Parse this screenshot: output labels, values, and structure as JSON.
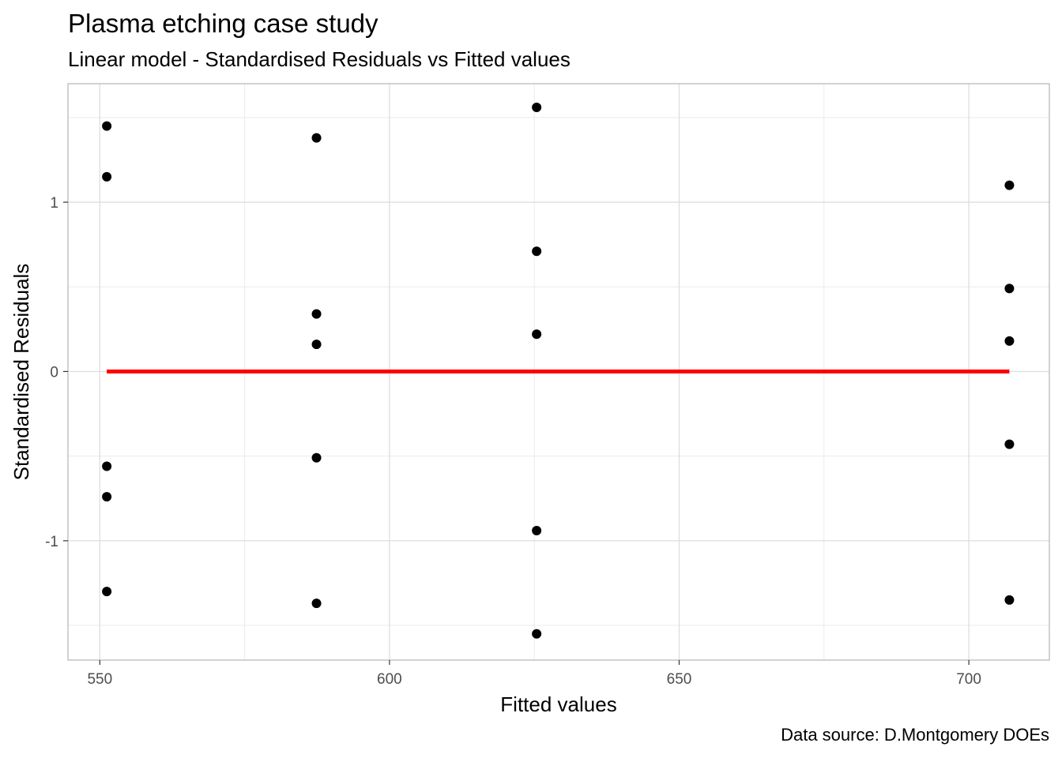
{
  "title": "Plasma etching case study",
  "subtitle": "Linear model - Standardised Residuals vs Fitted values",
  "caption": "Data source: D.Montgomery DOEs",
  "chart_data": {
    "type": "scatter",
    "xlabel": "Fitted values",
    "ylabel": "Standardised Residuals",
    "xlim": [
      544.5,
      713.9
    ],
    "ylim": [
      -1.705,
      1.7
    ],
    "x_ticks": [
      550,
      600,
      650,
      700
    ],
    "x_tick_labels": [
      "550",
      "600",
      "650",
      "700"
    ],
    "y_ticks": [
      -1,
      0,
      1
    ],
    "y_tick_labels": [
      "-1",
      "0",
      "1"
    ],
    "grid": true,
    "point_color": "#000000",
    "reference_line": {
      "y": 0,
      "x_from": 551.2,
      "x_to": 707.0,
      "color": "#ff0000"
    },
    "points": [
      {
        "x": 551.2,
        "y": 1.45
      },
      {
        "x": 551.2,
        "y": 1.15
      },
      {
        "x": 551.2,
        "y": -0.56
      },
      {
        "x": 551.2,
        "y": -0.74
      },
      {
        "x": 551.2,
        "y": -1.3
      },
      {
        "x": 587.4,
        "y": 1.38
      },
      {
        "x": 587.4,
        "y": 0.34
      },
      {
        "x": 587.4,
        "y": 0.16
      },
      {
        "x": 587.4,
        "y": -0.51
      },
      {
        "x": 587.4,
        "y": -1.37
      },
      {
        "x": 625.4,
        "y": 1.56
      },
      {
        "x": 625.4,
        "y": 0.71
      },
      {
        "x": 625.4,
        "y": 0.22
      },
      {
        "x": 625.4,
        "y": -0.94
      },
      {
        "x": 625.4,
        "y": -1.55
      },
      {
        "x": 707.0,
        "y": 1.1
      },
      {
        "x": 707.0,
        "y": 0.49
      },
      {
        "x": 707.0,
        "y": 0.18
      },
      {
        "x": 707.0,
        "y": -0.43
      },
      {
        "x": 707.0,
        "y": -1.35
      }
    ]
  }
}
